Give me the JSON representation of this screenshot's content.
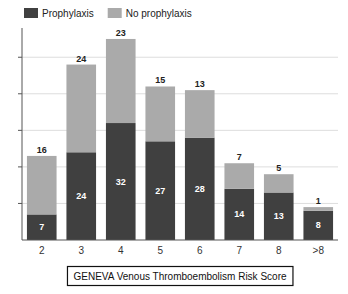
{
  "chart_data": {
    "type": "bar",
    "stacked": true,
    "categories": [
      "2",
      "3",
      "4",
      "5",
      "6",
      "7",
      "8",
      ">8"
    ],
    "series": [
      {
        "name": "Prophylaxis",
        "color": "#404040",
        "values": [
          7,
          24,
          32,
          27,
          28,
          14,
          13,
          8
        ]
      },
      {
        "name": "No prophylaxis",
        "color": "#aaaaaa",
        "values": [
          16,
          24,
          23,
          15,
          13,
          7,
          5,
          1
        ]
      }
    ],
    "x_label": "GENEVA Venous Thromboembolism Risk Score",
    "ylim": [
      0,
      58
    ],
    "yticks": [
      10,
      20,
      30,
      40,
      50
    ],
    "tick_labels": "x",
    "grid": true,
    "legend": "upper left",
    "data_labels": true
  }
}
